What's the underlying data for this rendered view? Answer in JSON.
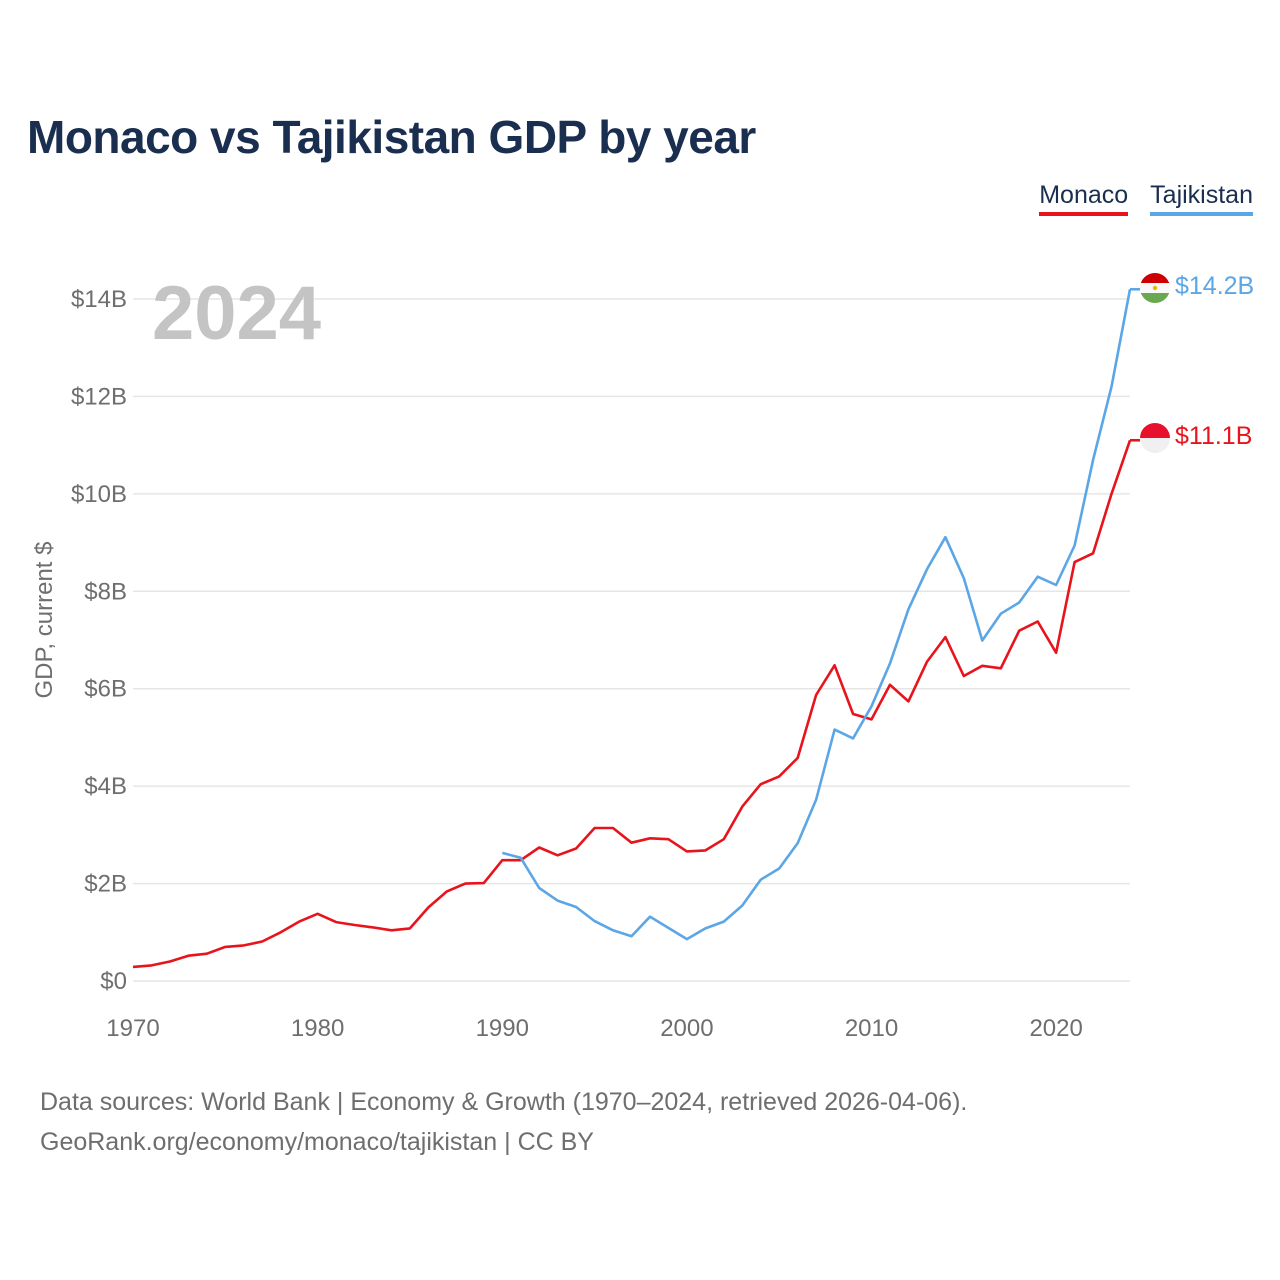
{
  "header": {
    "title": "Monaco vs Tajikistan GDP by year"
  },
  "legend": [
    {
      "label": "Monaco",
      "color": "#e8141c"
    },
    {
      "label": "Tajikistan",
      "color": "#5ba6e6"
    }
  ],
  "year_watermark": "2024",
  "footer": {
    "line1": "Data sources: World Bank | Economy & Growth (1970–2024, retrieved 2026-04-06).",
    "line2": "GeoRank.org/economy/monaco/tajikistan | CC BY"
  },
  "colors": {
    "monaco": "#e8141c",
    "tajikistan": "#5ba6e6",
    "axis_text": "#6e6e6e",
    "grid": "#e6e6e6",
    "title": "#1a2e4f",
    "watermark": "#c4c4c4"
  },
  "chart_data": {
    "type": "line",
    "title": "Monaco vs Tajikistan GDP by year",
    "ylabel": "GDP, current $",
    "xlabel": "",
    "xlim": [
      1970,
      2024
    ],
    "ylim": [
      0,
      14
    ],
    "x_ticks": [
      1970,
      1980,
      1990,
      2000,
      2010,
      2020
    ],
    "y_ticks": [
      {
        "value": 0,
        "label": "$0"
      },
      {
        "value": 2,
        "label": "$2B"
      },
      {
        "value": 4,
        "label": "$4B"
      },
      {
        "value": 6,
        "label": "$6B"
      },
      {
        "value": 8,
        "label": "$8B"
      },
      {
        "value": 10,
        "label": "$10B"
      },
      {
        "value": 12,
        "label": "$12B"
      },
      {
        "value": 14,
        "label": "$14B"
      }
    ],
    "legend_position": "top-right",
    "grid": true,
    "series": [
      {
        "name": "Monaco",
        "color": "#e8141c",
        "end_label": "$11.1B",
        "points": [
          [
            1970,
            0.29
          ],
          [
            1971,
            0.32
          ],
          [
            1972,
            0.4
          ],
          [
            1973,
            0.52
          ],
          [
            1974,
            0.56
          ],
          [
            1975,
            0.7
          ],
          [
            1976,
            0.73
          ],
          [
            1977,
            0.81
          ],
          [
            1978,
            1.0
          ],
          [
            1979,
            1.22
          ],
          [
            1980,
            1.38
          ],
          [
            1981,
            1.21
          ],
          [
            1982,
            1.15
          ],
          [
            1983,
            1.1
          ],
          [
            1984,
            1.04
          ],
          [
            1985,
            1.08
          ],
          [
            1986,
            1.51
          ],
          [
            1987,
            1.84
          ],
          [
            1988,
            2.0
          ],
          [
            1989,
            2.01
          ],
          [
            1990,
            2.48
          ],
          [
            1991,
            2.48
          ],
          [
            1992,
            2.74
          ],
          [
            1993,
            2.58
          ],
          [
            1994,
            2.72
          ],
          [
            1995,
            3.14
          ],
          [
            1996,
            3.14
          ],
          [
            1997,
            2.84
          ],
          [
            1998,
            2.93
          ],
          [
            1999,
            2.91
          ],
          [
            2000,
            2.66
          ],
          [
            2001,
            2.68
          ],
          [
            2002,
            2.91
          ],
          [
            2003,
            3.58
          ],
          [
            2004,
            4.04
          ],
          [
            2005,
            4.2
          ],
          [
            2006,
            4.58
          ],
          [
            2007,
            5.87
          ],
          [
            2008,
            6.48
          ],
          [
            2009,
            5.48
          ],
          [
            2010,
            5.37
          ],
          [
            2011,
            6.08
          ],
          [
            2012,
            5.74
          ],
          [
            2013,
            6.55
          ],
          [
            2014,
            7.06
          ],
          [
            2015,
            6.26
          ],
          [
            2016,
            6.47
          ],
          [
            2017,
            6.42
          ],
          [
            2018,
            7.19
          ],
          [
            2019,
            7.38
          ],
          [
            2020,
            6.74
          ],
          [
            2021,
            8.6
          ],
          [
            2022,
            8.78
          ],
          [
            2023,
            10.0
          ],
          [
            2024,
            11.1
          ]
        ]
      },
      {
        "name": "Tajikistan",
        "color": "#5ba6e6",
        "end_label": "$14.2B",
        "points": [
          [
            1990,
            2.63
          ],
          [
            1991,
            2.53
          ],
          [
            1992,
            1.91
          ],
          [
            1993,
            1.65
          ],
          [
            1994,
            1.52
          ],
          [
            1995,
            1.23
          ],
          [
            1996,
            1.04
          ],
          [
            1997,
            0.92
          ],
          [
            1998,
            1.32
          ],
          [
            1999,
            1.09
          ],
          [
            2000,
            0.86
          ],
          [
            2001,
            1.08
          ],
          [
            2002,
            1.22
          ],
          [
            2003,
            1.55
          ],
          [
            2004,
            2.08
          ],
          [
            2005,
            2.31
          ],
          [
            2006,
            2.83
          ],
          [
            2007,
            3.72
          ],
          [
            2008,
            5.16
          ],
          [
            2009,
            4.98
          ],
          [
            2010,
            5.64
          ],
          [
            2011,
            6.52
          ],
          [
            2012,
            7.63
          ],
          [
            2013,
            8.45
          ],
          [
            2014,
            9.11
          ],
          [
            2015,
            8.27
          ],
          [
            2016,
            6.99
          ],
          [
            2017,
            7.54
          ],
          [
            2018,
            7.77
          ],
          [
            2019,
            8.3
          ],
          [
            2020,
            8.13
          ],
          [
            2021,
            8.94
          ],
          [
            2022,
            10.7
          ],
          [
            2023,
            12.2
          ],
          [
            2024,
            14.2
          ]
        ]
      }
    ]
  }
}
